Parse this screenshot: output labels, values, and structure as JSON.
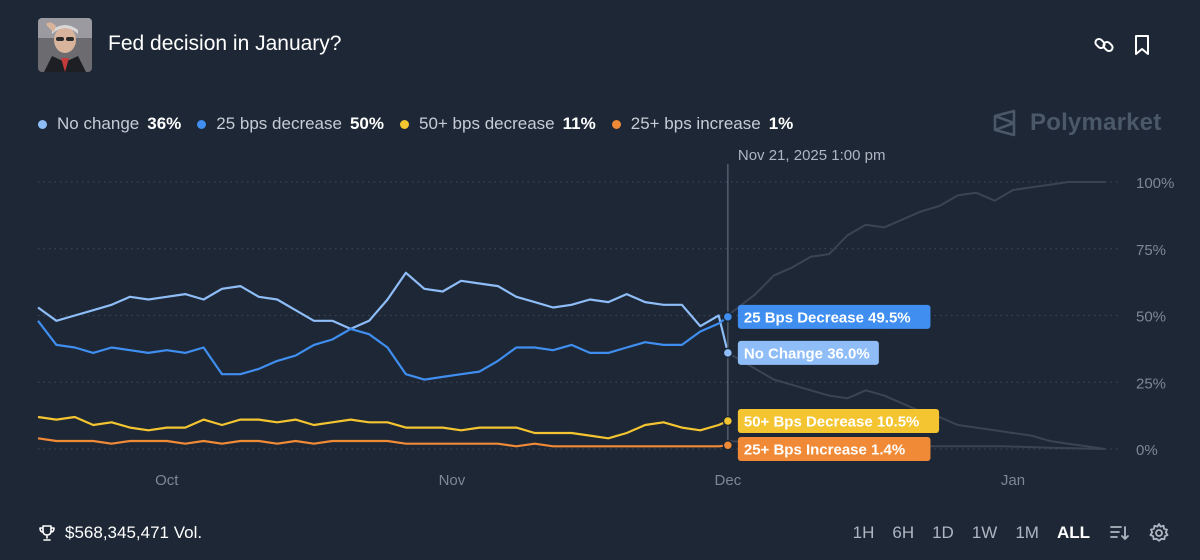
{
  "header": {
    "title": "Fed decision in January?"
  },
  "brand": {
    "name": "Polymarket"
  },
  "legend": [
    {
      "name": "No change",
      "value": "36%",
      "color": "#8fbdf8"
    },
    {
      "name": "25 bps decrease",
      "value": "50%",
      "color": "#3f8ef0"
    },
    {
      "name": "50+ bps decrease",
      "value": "11%",
      "color": "#f4c531"
    },
    {
      "name": "25+ bps increase",
      "value": "1%",
      "color": "#f08a36"
    }
  ],
  "footer": {
    "volume": "$568,345,471 Vol.",
    "timeframes": [
      "1H",
      "6H",
      "1D",
      "1W",
      "1M",
      "ALL"
    ],
    "active_timeframe": "ALL"
  },
  "chart_data": {
    "type": "line",
    "title": "Fed decision in January?",
    "x_labels": [
      "Oct",
      "Nov",
      "Dec",
      "Jan"
    ],
    "y_ticks": [
      "0%",
      "25%",
      "50%",
      "75%",
      "100%"
    ],
    "ylim": [
      0,
      100
    ],
    "hover": {
      "date": "Nov 21, 2025 1:00 pm",
      "labels": [
        {
          "text": "25 Bps Decrease 49.5%",
          "value": 49.5,
          "color": "#3f8ef0"
        },
        {
          "text": "No Change 36.0%",
          "value": 36.0,
          "color": "#8fbdf8"
        },
        {
          "text": "50+ Bps Decrease 10.5%",
          "value": 10.5,
          "color": "#f4c531"
        },
        {
          "text": "25+ Bps Increase 1.4%",
          "value": 1.4,
          "color": "#f08a36"
        }
      ]
    },
    "x_range_days": [
      0,
      116
    ],
    "x_label_days": [
      14,
      45,
      75,
      106
    ],
    "hover_day": 75,
    "series": [
      {
        "name": "No change",
        "color": "#8fbdf8",
        "x": [
          0,
          2,
          4,
          6,
          8,
          10,
          12,
          14,
          16,
          18,
          20,
          22,
          24,
          26,
          28,
          30,
          32,
          34,
          36,
          38,
          40,
          42,
          44,
          46,
          48,
          50,
          52,
          54,
          56,
          58,
          60,
          62,
          64,
          66,
          68,
          70,
          72,
          74,
          75
        ],
        "y": [
          53,
          48,
          50,
          52,
          54,
          57,
          56,
          57,
          58,
          56,
          60,
          61,
          57,
          56,
          52,
          48,
          48,
          45,
          48,
          56,
          66,
          60,
          59,
          63,
          62,
          61,
          57,
          55,
          53,
          54,
          56,
          55,
          58,
          55,
          54,
          54,
          46,
          50,
          36
        ]
      },
      {
        "name": "25 bps decrease",
        "color": "#3f8ef0",
        "x": [
          0,
          2,
          4,
          6,
          8,
          10,
          12,
          14,
          16,
          18,
          20,
          22,
          24,
          26,
          28,
          30,
          32,
          34,
          36,
          38,
          40,
          42,
          44,
          46,
          48,
          50,
          52,
          54,
          56,
          58,
          60,
          62,
          64,
          66,
          68,
          70,
          72,
          74,
          75
        ],
        "y": [
          48,
          39,
          38,
          36,
          38,
          37,
          36,
          37,
          36,
          38,
          28,
          28,
          30,
          33,
          35,
          39,
          41,
          45,
          43,
          38,
          28,
          26,
          27,
          28,
          29,
          33,
          38,
          38,
          37,
          39,
          36,
          36,
          38,
          40,
          39,
          39,
          44,
          47,
          49.5
        ]
      },
      {
        "name": "50+ bps decrease",
        "color": "#f4c531",
        "x": [
          0,
          2,
          4,
          6,
          8,
          10,
          12,
          14,
          16,
          18,
          20,
          22,
          24,
          26,
          28,
          30,
          32,
          34,
          36,
          38,
          40,
          42,
          44,
          46,
          48,
          50,
          52,
          54,
          56,
          58,
          60,
          62,
          64,
          66,
          68,
          70,
          72,
          74,
          75
        ],
        "y": [
          12,
          11,
          12,
          9,
          10,
          8,
          7,
          8,
          8,
          11,
          9,
          11,
          11,
          10,
          11,
          9,
          10,
          11,
          10,
          10,
          8,
          8,
          8,
          7,
          8,
          8,
          8,
          6,
          6,
          6,
          5,
          4,
          6,
          9,
          10,
          8,
          7,
          9,
          10.5
        ]
      },
      {
        "name": "25+ bps increase",
        "color": "#f08a36",
        "x": [
          0,
          2,
          4,
          6,
          8,
          10,
          12,
          14,
          16,
          18,
          20,
          22,
          24,
          26,
          28,
          30,
          32,
          34,
          36,
          38,
          40,
          42,
          44,
          46,
          48,
          50,
          52,
          54,
          56,
          58,
          60,
          62,
          64,
          66,
          68,
          70,
          72,
          74,
          75
        ],
        "y": [
          4,
          3,
          3,
          3,
          2,
          3,
          3,
          3,
          2,
          3,
          2,
          3,
          3,
          2,
          3,
          2,
          3,
          3,
          3,
          3,
          2,
          2,
          2,
          2,
          2,
          2,
          1,
          2,
          1,
          1,
          1,
          1,
          1,
          1,
          1,
          1,
          1,
          1,
          1.4
        ]
      }
    ],
    "faded_series": [
      {
        "name": "rising (future)",
        "x": [
          75,
          78,
          80,
          82,
          84,
          86,
          88,
          90,
          92,
          94,
          96,
          98,
          100,
          102,
          104,
          106,
          108,
          110,
          112,
          114,
          116
        ],
        "y": [
          50,
          58,
          65,
          68,
          72,
          73,
          80,
          84,
          83,
          86,
          89,
          91,
          95,
          96,
          93,
          97,
          98,
          99,
          100,
          100,
          100
        ]
      },
      {
        "name": "falling (future)",
        "x": [
          75,
          78,
          80,
          82,
          84,
          86,
          88,
          90,
          92,
          94,
          96,
          98,
          100,
          102,
          104,
          106,
          108,
          110,
          112,
          114,
          116
        ],
        "y": [
          36,
          30,
          26,
          24,
          22,
          20,
          19,
          22,
          20,
          17,
          14,
          12,
          9,
          8,
          7,
          6,
          5,
          3,
          2,
          1,
          0
        ]
      },
      {
        "name": "low (future)",
        "x": [
          75,
          80,
          85,
          90,
          95,
          100,
          105,
          110,
          116
        ],
        "y": [
          3,
          2,
          2,
          1,
          1,
          1,
          1,
          0.5,
          0
        ]
      }
    ]
  }
}
